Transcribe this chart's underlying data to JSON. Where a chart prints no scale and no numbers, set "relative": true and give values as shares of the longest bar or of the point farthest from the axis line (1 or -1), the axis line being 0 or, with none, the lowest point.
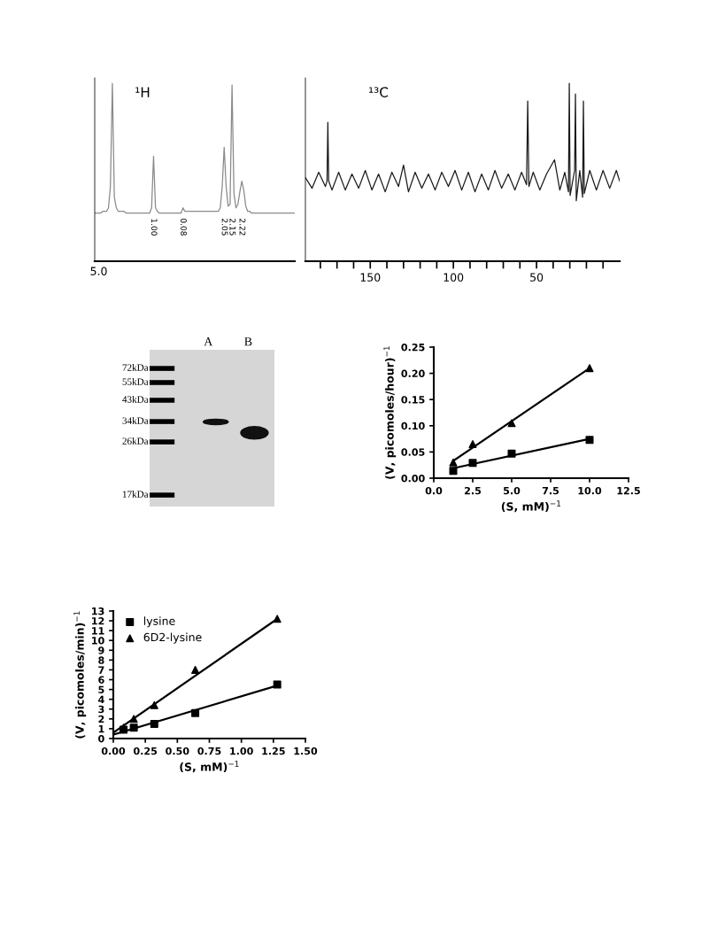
{
  "chart_data": [
    {
      "type": "line",
      "relative": true,
      "tick_labels": false,
      "categories": [
        null,
        null,
        null,
        null,
        null,
        null,
        null,
        null,
        null,
        null,
        null,
        null,
        null,
        null,
        null,
        null,
        null,
        null,
        null,
        null,
        null,
        null,
        null,
        null,
        null,
        null,
        null,
        null,
        null,
        null,
        null,
        null,
        null,
        null,
        null,
        null,
        null,
        null,
        null,
        null,
        null,
        null,
        null,
        null,
        null,
        null,
        null,
        null,
        null,
        null,
        null,
        null,
        null,
        null,
        null,
        null,
        null,
        null,
        null,
        null,
        null,
        null,
        null,
        null,
        null,
        null,
        null,
        null,
        null,
        null,
        null,
        null,
        null,
        null,
        null,
        null,
        null,
        null,
        null,
        null,
        null,
        null,
        null,
        null,
        null,
        null,
        null,
        null,
        null,
        null,
        null,
        null,
        null,
        null,
        null,
        null,
        null,
        null,
        null,
        null,
        null,
        null,
        null
      ],
      "series": [
        {
          "color": "#8a8a8a",
          "values": [
            0.27,
            0.27,
            0.27,
            0.27,
            0.28,
            0.28,
            0.28,
            0.3,
            0.42,
            1.0,
            0.36,
            0.3,
            0.28,
            0.28,
            0.28,
            0.28,
            0.27,
            0.27,
            0.27,
            0.27,
            0.27,
            0.27,
            0.27,
            0.27,
            0.27,
            0.27,
            0.27,
            0.27,
            0.27,
            0.3,
            0.59,
            0.3,
            0.28,
            0.27,
            0.27,
            0.27,
            0.27,
            0.27,
            0.27,
            0.27,
            0.27,
            0.27,
            0.27,
            0.27,
            0.27,
            0.3,
            0.28,
            0.28,
            0.28,
            0.28,
            0.28,
            0.28,
            0.28,
            0.28,
            0.28,
            0.28,
            0.28,
            0.28,
            0.28,
            0.28,
            0.28,
            0.28,
            0.28,
            0.28,
            0.3,
            0.42,
            0.64,
            0.42,
            0.31,
            0.32,
            0.99,
            0.38,
            0.3,
            0.32,
            0.39,
            0.45,
            0.4,
            0.31,
            0.28,
            0.28,
            0.27,
            0.27,
            0.27,
            0.27,
            0.27,
            0.27,
            0.27,
            0.27,
            0.27,
            0.27,
            0.27,
            0.27,
            0.27,
            0.27,
            0.27,
            0.27,
            0.27,
            0.27,
            0.27,
            0.27,
            0.27,
            0.27,
            0.27
          ]
        }
      ],
      "annotations": [
        "¹H",
        "5.0",
        "1.00",
        "0.08",
        "2.05",
        "2.15",
        "2.22"
      ]
    },
    {
      "type": "line",
      "relative": true,
      "xlim": [
        189,
        0
      ],
      "xticks": [
        {
          "value": 180,
          "label": null
        },
        {
          "value": 170,
          "label": null
        },
        {
          "value": 160,
          "label": null
        },
        150,
        {
          "value": 140,
          "label": null
        },
        {
          "value": 130,
          "label": null
        },
        {
          "value": 120,
          "label": null
        },
        {
          "value": 110,
          "label": null
        },
        100,
        {
          "value": 90,
          "label": null
        },
        {
          "value": 80,
          "label": null
        },
        {
          "value": 70,
          "label": null
        },
        {
          "value": 60,
          "label": null
        },
        50,
        {
          "value": 40,
          "label": null
        },
        {
          "value": 30,
          "label": null
        },
        {
          "value": 20,
          "label": null
        },
        {
          "value": 10,
          "label": null
        }
      ],
      "tick_labels": "x",
      "x": [
        189,
        185,
        181,
        177,
        176,
        175.5,
        175,
        173,
        169,
        165,
        161,
        157,
        153,
        149,
        145,
        141,
        137,
        133,
        130,
        127,
        123,
        119,
        115,
        111,
        107,
        103,
        99,
        95,
        91,
        87,
        83,
        79,
        75,
        71,
        67,
        63,
        59,
        56,
        55.3,
        54.6,
        52,
        48,
        44,
        39.2,
        36,
        33,
        30.8,
        30.3,
        29.8,
        27.1,
        26.6,
        26.1,
        24,
        22.3,
        21.8,
        21.3,
        18,
        14,
        10,
        6,
        2,
        0
      ],
      "series": [
        {
          "color": "#1a1a1a",
          "values": [
            0.47,
            0.41,
            0.5,
            0.42,
            0.45,
            0.78,
            0.45,
            0.4,
            0.5,
            0.4,
            0.49,
            0.41,
            0.51,
            0.4,
            0.49,
            0.39,
            0.5,
            0.42,
            0.54,
            0.39,
            0.5,
            0.41,
            0.49,
            0.4,
            0.5,
            0.42,
            0.51,
            0.4,
            0.5,
            0.39,
            0.49,
            0.4,
            0.51,
            0.41,
            0.49,
            0.4,
            0.5,
            0.43,
            0.9,
            0.42,
            0.5,
            0.4,
            0.49,
            0.57,
            0.4,
            0.5,
            0.39,
            1.0,
            0.37,
            0.51,
            0.94,
            0.34,
            0.51,
            0.36,
            0.9,
            0.38,
            0.51,
            0.4,
            0.51,
            0.41,
            0.51,
            0.45
          ]
        }
      ],
      "annotations": [
        "¹³C"
      ]
    },
    {
      "type": "other",
      "annotations": [
        "72kDa",
        "55kDa",
        "43kDa",
        "34kDa",
        "26kDa",
        "17kDa",
        "A",
        "B"
      ]
    },
    {
      "type": "scatter",
      "xlim": [
        0,
        12.5
      ],
      "xticks": [
        {
          "value": 0,
          "label": "0.0"
        },
        2.5,
        {
          "value": 5,
          "label": "5.0"
        },
        7.5,
        {
          "value": 10,
          "label": "10.0"
        },
        12.5
      ],
      "ylim": [
        0,
        0.25
      ],
      "yticks": [
        {
          "value": 0,
          "label": "0.00"
        },
        0.05,
        {
          "value": 0.1,
          "label": "0.10"
        },
        0.15,
        {
          "value": 0.2,
          "label": "0.20"
        },
        0.25
      ],
      "xlabel": "(S, mM)$^{−1}$",
      "ylabel": "(V, picomoles/hour)$^{−1}$",
      "x": [
        1.25,
        2.5,
        5,
        10
      ],
      "series": [
        {
          "color": "#000000",
          "marker": "square",
          "values": [
            0.014,
            0.029,
            0.047,
            0.073
          ]
        },
        {
          "color": "#000000",
          "marker": "triangle",
          "values": [
            0.03,
            0.065,
            0.105,
            0.21
          ]
        },
        {
          "type": "line",
          "color": "#000000",
          "x": [
            1.25,
            10
          ],
          "values": [
            0.019,
            0.075
          ]
        },
        {
          "type": "line",
          "color": "#000000",
          "x": [
            1.25,
            10
          ],
          "values": [
            0.033,
            0.21
          ]
        }
      ]
    },
    {
      "type": "scatter",
      "xlim": [
        0,
        1.5
      ],
      "xticks": [
        {
          "value": 0,
          "label": "0.00"
        },
        0.25,
        {
          "value": 0.5,
          "label": "0.50"
        },
        0.75,
        {
          "value": 1.0,
          "label": "1.00"
        },
        1.25,
        {
          "value": 1.5,
          "label": "1.50"
        }
      ],
      "ylim": [
        0,
        13
      ],
      "yticks": [
        0,
        1,
        2,
        3,
        4,
        5,
        6,
        7,
        8,
        9,
        10,
        11,
        12,
        13
      ],
      "xlabel": "(S, mM)$^{−1}$",
      "ylabel": "(V, picomoles/min)$^{−1}$",
      "legend": "top left",
      "x": [
        0.08,
        0.16,
        0.32,
        0.64,
        1.28
      ],
      "series": [
        {
          "name": "lysine",
          "color": "#000000",
          "marker": "square",
          "values": [
            0.9,
            1.1,
            1.5,
            2.6,
            5.5
          ]
        },
        {
          "name": "6D2-lysine",
          "color": "#000000",
          "marker": "triangle",
          "values": [
            1.1,
            2.0,
            3.4,
            7.0,
            12.2
          ]
        },
        {
          "type": "line",
          "color": "#000000",
          "x": [
            0,
            1.28
          ],
          "values": [
            0.4,
            5.4
          ]
        },
        {
          "type": "line",
          "color": "#000000",
          "x": [
            0,
            1.28
          ],
          "values": [
            0.6,
            12.2
          ]
        }
      ]
    }
  ]
}
